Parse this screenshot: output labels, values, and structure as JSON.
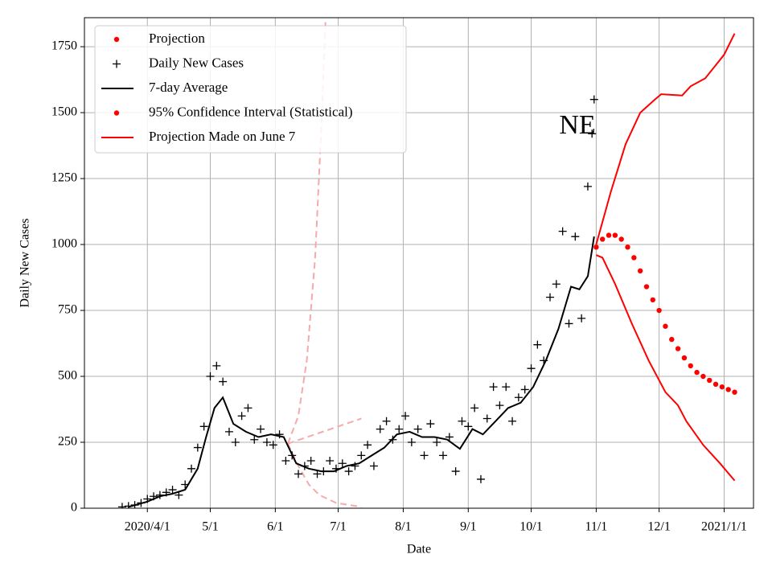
{
  "chart_data": {
    "type": "line",
    "xlabel": "Date",
    "ylabel": "Daily New Cases",
    "annotation": "NE",
    "xlim": [
      "2020-03-02",
      "2021-01-15"
    ],
    "xticks": [
      {
        "value": "2020-04-01",
        "label": "2020/4/1"
      },
      {
        "value": "2020-05-01",
        "label": "5/1"
      },
      {
        "value": "2020-06-01",
        "label": "6/1"
      },
      {
        "value": "2020-07-01",
        "label": "7/1"
      },
      {
        "value": "2020-08-01",
        "label": "8/1"
      },
      {
        "value": "2020-09-01",
        "label": "9/1"
      },
      {
        "value": "2020-10-01",
        "label": "10/1"
      },
      {
        "value": "2020-11-01",
        "label": "11/1"
      },
      {
        "value": "2020-12-01",
        "label": "12/1"
      },
      {
        "value": "2021-01-01",
        "label": "2021/1/1"
      }
    ],
    "ylim": [
      0,
      1860
    ],
    "yticks": [
      0,
      250,
      500,
      750,
      1000,
      1250,
      1500,
      1750
    ],
    "grid": true,
    "legend": "upper left",
    "series": [
      {
        "name": "Projection",
        "color": "#ff0000",
        "marker": "dot",
        "x": [
          "2020-11-01",
          "2020-11-04",
          "2020-11-07",
          "2020-11-10",
          "2020-11-13",
          "2020-11-16",
          "2020-11-19",
          "2020-11-22",
          "2020-11-25",
          "2020-11-28",
          "2020-12-01",
          "2020-12-04",
          "2020-12-07",
          "2020-12-10",
          "2020-12-13",
          "2020-12-16",
          "2020-12-19",
          "2020-12-22",
          "2020-12-25",
          "2020-12-28",
          "2020-12-31",
          "2021-01-03",
          "2021-01-06"
        ],
        "values": [
          990,
          1020,
          1035,
          1035,
          1020,
          990,
          950,
          900,
          840,
          790,
          750,
          690,
          640,
          605,
          570,
          540,
          515,
          500,
          485,
          470,
          460,
          450,
          440
        ]
      },
      {
        "name": "Daily New Cases",
        "color": "#000000",
        "marker": "plus",
        "x": [
          "2020-03-20",
          "2020-03-23",
          "2020-03-26",
          "2020-03-29",
          "2020-04-01",
          "2020-04-04",
          "2020-04-07",
          "2020-04-10",
          "2020-04-13",
          "2020-04-16",
          "2020-04-19",
          "2020-04-22",
          "2020-04-25",
          "2020-04-28",
          "2020-05-01",
          "2020-05-04",
          "2020-05-07",
          "2020-05-10",
          "2020-05-13",
          "2020-05-16",
          "2020-05-19",
          "2020-05-22",
          "2020-05-25",
          "2020-05-28",
          "2020-05-31",
          "2020-06-03",
          "2020-06-06",
          "2020-06-09",
          "2020-06-12",
          "2020-06-15",
          "2020-06-18",
          "2020-06-21",
          "2020-06-24",
          "2020-06-27",
          "2020-06-30",
          "2020-07-03",
          "2020-07-06",
          "2020-07-09",
          "2020-07-12",
          "2020-07-15",
          "2020-07-18",
          "2020-07-21",
          "2020-07-24",
          "2020-07-27",
          "2020-07-30",
          "2020-08-02",
          "2020-08-05",
          "2020-08-08",
          "2020-08-11",
          "2020-08-14",
          "2020-08-17",
          "2020-08-20",
          "2020-08-23",
          "2020-08-26",
          "2020-08-29",
          "2020-09-01",
          "2020-09-04",
          "2020-09-07",
          "2020-09-10",
          "2020-09-13",
          "2020-09-16",
          "2020-09-19",
          "2020-09-22",
          "2020-09-25",
          "2020-09-28",
          "2020-10-01",
          "2020-10-04",
          "2020-10-07",
          "2020-10-10",
          "2020-10-13",
          "2020-10-16",
          "2020-10-19",
          "2020-10-22",
          "2020-10-25",
          "2020-10-28",
          "2020-10-30",
          "2020-10-31"
        ],
        "values": [
          5,
          8,
          12,
          20,
          35,
          45,
          50,
          60,
          70,
          50,
          90,
          150,
          230,
          310,
          500,
          540,
          480,
          290,
          250,
          350,
          380,
          260,
          300,
          250,
          240,
          280,
          180,
          200,
          130,
          160,
          180,
          130,
          140,
          180,
          150,
          170,
          140,
          160,
          200,
          240,
          160,
          300,
          330,
          260,
          300,
          350,
          250,
          300,
          200,
          320,
          250,
          200,
          270,
          140,
          330,
          310,
          380,
          110,
          340,
          460,
          390,
          460,
          330,
          420,
          450,
          530,
          620,
          560,
          800,
          850,
          1050,
          700,
          1030,
          720,
          1220,
          1420,
          1550
        ]
      },
      {
        "name": "7-day Average",
        "color": "#000000",
        "marker": "line",
        "x": [
          "2020-03-23",
          "2020-04-01",
          "2020-04-07",
          "2020-04-13",
          "2020-04-19",
          "2020-04-25",
          "2020-04-29",
          "2020-05-03",
          "2020-05-07",
          "2020-05-12",
          "2020-05-18",
          "2020-05-24",
          "2020-05-30",
          "2020-06-05",
          "2020-06-11",
          "2020-06-17",
          "2020-06-23",
          "2020-06-29",
          "2020-07-05",
          "2020-07-11",
          "2020-07-17",
          "2020-07-23",
          "2020-07-29",
          "2020-08-04",
          "2020-08-10",
          "2020-08-16",
          "2020-08-22",
          "2020-08-28",
          "2020-09-03",
          "2020-09-08",
          "2020-09-14",
          "2020-09-20",
          "2020-09-26",
          "2020-10-02",
          "2020-10-08",
          "2020-10-14",
          "2020-10-20",
          "2020-10-24",
          "2020-10-28",
          "2020-10-31"
        ],
        "values": [
          5,
          25,
          45,
          55,
          70,
          150,
          270,
          380,
          420,
          320,
          290,
          270,
          280,
          270,
          170,
          150,
          140,
          140,
          160,
          170,
          200,
          230,
          280,
          290,
          270,
          270,
          260,
          225,
          300,
          280,
          330,
          380,
          400,
          460,
          560,
          680,
          840,
          830,
          880,
          1030
        ]
      },
      {
        "name": "95% Confidence Interval (Statistical)",
        "color": "#ff0000",
        "marker": "line",
        "legend_marker": "dot",
        "lines": [
          {
            "x": [
              "2020-11-01",
              "2020-11-08",
              "2020-11-15",
              "2020-11-22",
              "2020-11-29",
              "2020-12-02",
              "2020-12-12",
              "2020-12-16",
              "2020-12-23",
              "2021-01-01",
              "2021-01-06"
            ],
            "values": [
              1000,
              1200,
              1380,
              1500,
              1550,
              1570,
              1565,
              1600,
              1630,
              1720,
              1800
            ]
          },
          {
            "x": [
              "2020-11-01",
              "2020-11-04",
              "2020-11-10",
              "2020-11-18",
              "2020-11-26",
              "2020-12-04",
              "2020-12-10",
              "2020-12-14",
              "2020-12-22",
              "2020-12-30",
              "2021-01-06"
            ],
            "values": [
              960,
              950,
              850,
              700,
              560,
              440,
              390,
              330,
              240,
              170,
              105
            ]
          }
        ]
      },
      {
        "name": "Projection Made on June 7",
        "color": "#ff0000",
        "marker": "line",
        "line_color": "#f5aaaa",
        "dashed": true,
        "lines": [
          {
            "x": [
              "2020-06-07",
              "2020-07-12"
            ],
            "values": [
              245,
              340
            ]
          },
          {
            "x": [
              "2020-06-07",
              "2020-06-12",
              "2020-06-16",
              "2020-06-20",
              "2020-06-23",
              "2020-06-25"
            ],
            "values": [
              245,
              350,
              560,
              950,
              1450,
              1860
            ]
          },
          {
            "x": [
              "2020-06-07",
              "2020-06-12",
              "2020-06-17",
              "2020-06-22",
              "2020-06-30",
              "2020-07-12"
            ],
            "values": [
              245,
              160,
              90,
              50,
              20,
              5
            ]
          }
        ]
      }
    ]
  }
}
